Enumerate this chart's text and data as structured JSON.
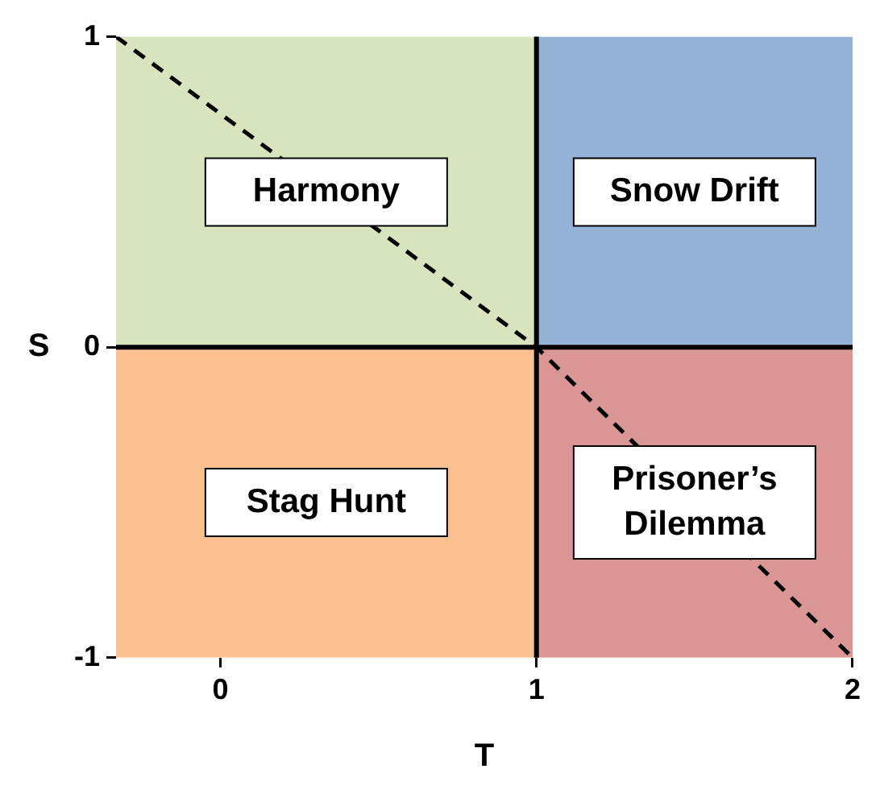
{
  "chart_data": {
    "type": "line",
    "xlabel": "T",
    "ylabel": "S",
    "xlim": [
      -0.33,
      2
    ],
    "xticks": [
      0,
      1,
      2
    ],
    "ylim": [
      -1,
      1
    ],
    "yticks": [
      -1,
      0,
      1
    ],
    "legend": false,
    "series": [
      {
        "type": "area",
        "color": "#d7e4bd",
        "x": [
          -0.33,
          1
        ],
        "values": [
          1,
          1
        ]
      },
      {
        "type": "area",
        "color": "#95b3d7",
        "x": [
          1,
          2
        ],
        "values": [
          1,
          1
        ]
      },
      {
        "type": "area",
        "color": "#fac090",
        "x": [
          -0.33,
          1
        ],
        "values": [
          -1,
          -1
        ]
      },
      {
        "type": "area",
        "color": "#d99694",
        "x": [
          1,
          2
        ],
        "values": [
          -1,
          -1
        ]
      },
      {
        "color": "#000000",
        "marker": "none",
        "line_style": "dashed",
        "x": [
          -0.33,
          1,
          2
        ],
        "values": [
          1,
          0,
          -1
        ]
      }
    ],
    "ref_lines": [
      {
        "axis": "x",
        "value": 1,
        "color": "#000000"
      },
      {
        "axis": "y",
        "value": 0,
        "color": "#000000"
      }
    ],
    "annotations": [
      "Harmony",
      "Snow Drift",
      "Stag Hunt",
      "Prisoner’s Dilemma"
    ]
  }
}
